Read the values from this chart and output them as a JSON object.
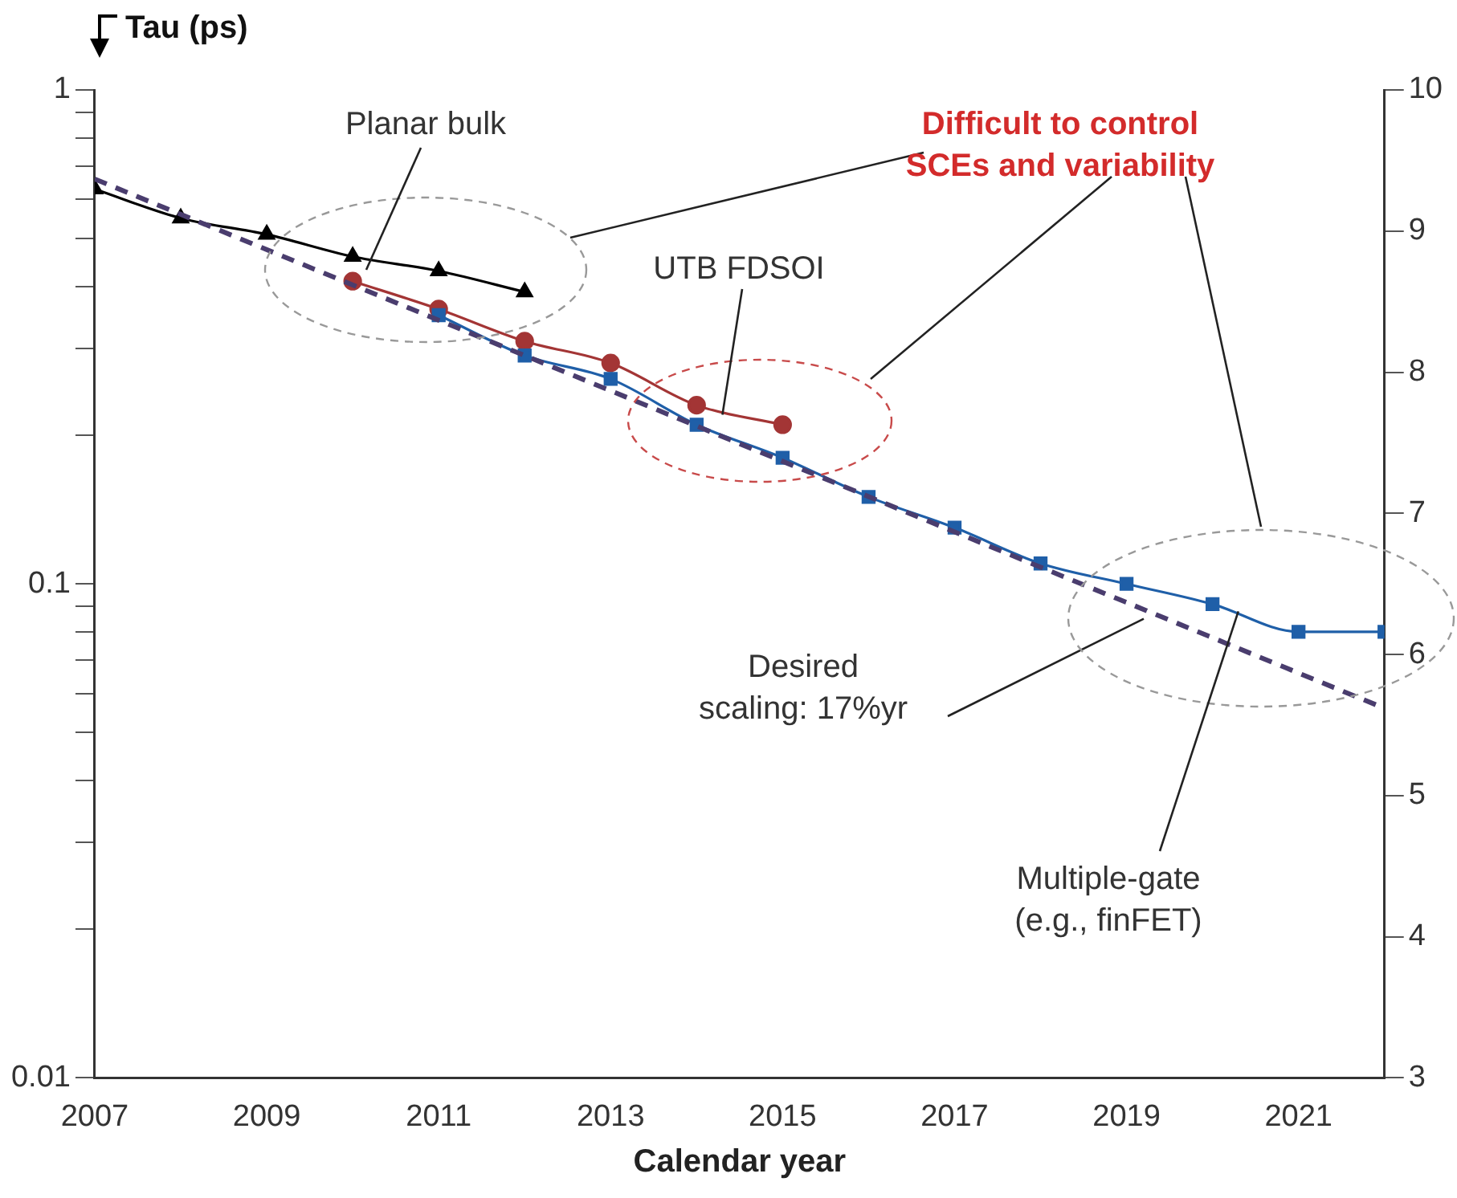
{
  "chart_data": {
    "type": "line",
    "ylabel": "Tau (ps)",
    "xlabel": "Calendar year",
    "xlim": [
      2007,
      2022
    ],
    "xticks": [
      2007,
      2009,
      2011,
      2013,
      2015,
      2017,
      2019,
      2021
    ],
    "ylim": [
      0.01,
      1
    ],
    "log": "y",
    "yticks": [
      0.01,
      {
        "value": 0.02,
        "label": null
      },
      {
        "value": 0.03,
        "label": null
      },
      {
        "value": 0.04,
        "label": null
      },
      {
        "value": 0.05,
        "label": null
      },
      {
        "value": 0.06,
        "label": null
      },
      {
        "value": 0.07,
        "label": null
      },
      {
        "value": 0.08,
        "label": null
      },
      {
        "value": 0.09,
        "label": null
      },
      0.1,
      {
        "value": 0.2,
        "label": null
      },
      {
        "value": 0.3,
        "label": null
      },
      {
        "value": 0.4,
        "label": null
      },
      {
        "value": 0.5,
        "label": null
      },
      {
        "value": 0.6,
        "label": null
      },
      {
        "value": 0.7,
        "label": null
      },
      {
        "value": 0.8,
        "label": null
      },
      {
        "value": 0.9,
        "label": null
      },
      1
    ],
    "y2lim": [
      3,
      10
    ],
    "y2ticks": [
      3,
      4,
      5,
      6,
      7,
      8,
      9,
      10
    ],
    "grid": false,
    "legend": false,
    "series": [
      {
        "color": "#000000",
        "marker": "triangle",
        "line_style": "solid",
        "x": [
          2007,
          2008,
          2009,
          2010,
          2011,
          2012
        ],
        "values": [
          0.63,
          0.55,
          0.51,
          0.46,
          0.43,
          0.39
        ]
      },
      {
        "color": "#a33535",
        "marker": "circle",
        "line_style": "solid",
        "x": [
          2010,
          2011,
          2012,
          2013,
          2014,
          2015
        ],
        "values": [
          0.41,
          0.36,
          0.31,
          0.28,
          0.23,
          0.21
        ]
      },
      {
        "color": "#1f5fa8",
        "marker": "square",
        "line_style": "solid",
        "x": [
          2011,
          2012,
          2013,
          2014,
          2015,
          2016,
          2017,
          2018,
          2019,
          2020,
          2021,
          2022
        ],
        "values": [
          0.35,
          0.29,
          0.26,
          0.21,
          0.18,
          0.15,
          0.13,
          0.11,
          0.1,
          0.091,
          0.08,
          0.08
        ]
      },
      {
        "color": "#4a3d6e",
        "marker": "none",
        "line_style": "dashed",
        "x": [
          2007,
          2022
        ],
        "values": [
          0.66,
          0.056
        ]
      }
    ],
    "annotations": [
      "Planar bulk",
      "Difficult to control\nSCEs and variability",
      {
        "text": "UTB FDSOI",
        "x": 2014.3,
        "y": 0.22
      },
      {
        "text": "Desired\nscaling: 17%yr",
        "x": 2019.2,
        "y": 0.085
      },
      {
        "text": "Multiple-gate\n(e.g., finFET)",
        "x": 2020.3,
        "y": 0.088
      }
    ]
  }
}
